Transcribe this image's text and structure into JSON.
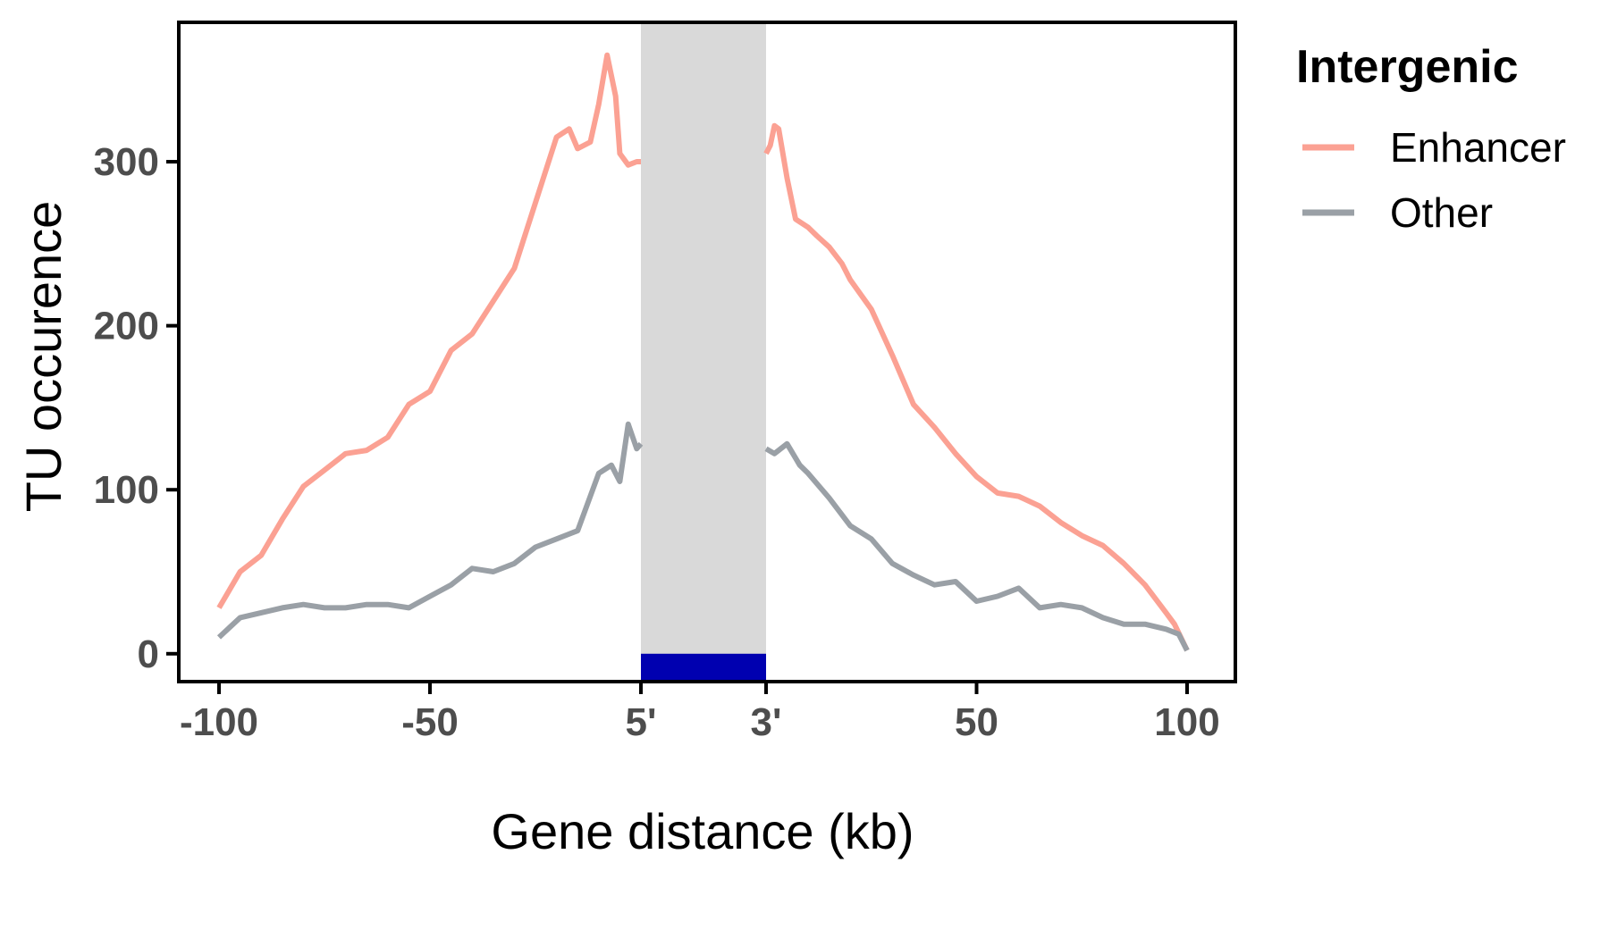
{
  "chart_data": {
    "type": "line",
    "xlabel": "Gene distance (kb)",
    "ylabel": "TU occurence",
    "ylim": [
      -17,
      385
    ],
    "yticks": [
      0,
      100,
      200,
      300
    ],
    "xticks": [
      "-100",
      "-50",
      "5'",
      "3'",
      "50",
      "100"
    ],
    "gene_body_band": {
      "from_label": "5'",
      "to_label": "3'",
      "band_color": "#d9d9d9",
      "gene_bar_color": "#0000b0"
    },
    "grid": false,
    "legend": {
      "title": "Intergenic",
      "position": "right"
    },
    "series": [
      {
        "name": "Enhancer",
        "color": "#fba193",
        "upstream": {
          "x": [
            -100,
            -95,
            -90,
            -85,
            -80,
            -75,
            -70,
            -65,
            -60,
            -55,
            -50,
            -45,
            -40,
            -35,
            -30,
            -25,
            -20,
            -17,
            -15,
            -12,
            -10,
            -8,
            -6,
            -5,
            -3,
            -1,
            0
          ],
          "y": [
            28,
            50,
            60,
            82,
            102,
            112,
            122,
            124,
            132,
            152,
            160,
            185,
            195,
            215,
            235,
            275,
            315,
            320,
            308,
            312,
            335,
            365,
            340,
            305,
            298,
            300,
            300
          ]
        },
        "downstream": {
          "x": [
            0,
            1,
            2,
            3,
            5,
            7,
            10,
            12,
            15,
            18,
            20,
            25,
            30,
            35,
            40,
            45,
            50,
            55,
            60,
            65,
            70,
            75,
            80,
            85,
            90,
            95,
            97,
            100
          ],
          "y": [
            305,
            310,
            322,
            320,
            290,
            265,
            260,
            255,
            248,
            238,
            228,
            210,
            182,
            152,
            138,
            122,
            108,
            98,
            96,
            90,
            80,
            72,
            66,
            55,
            42,
            25,
            18,
            2
          ]
        }
      },
      {
        "name": "Other",
        "color": "#9aa0a6",
        "upstream": {
          "x": [
            -100,
            -95,
            -90,
            -85,
            -80,
            -75,
            -70,
            -65,
            -60,
            -55,
            -50,
            -45,
            -40,
            -35,
            -30,
            -25,
            -20,
            -15,
            -10,
            -7,
            -5,
            -3,
            -1,
            0
          ],
          "y": [
            10,
            22,
            25,
            28,
            30,
            28,
            28,
            30,
            30,
            28,
            35,
            42,
            52,
            50,
            55,
            65,
            70,
            75,
            110,
            115,
            105,
            140,
            125,
            128
          ]
        },
        "downstream": {
          "x": [
            0,
            2,
            5,
            8,
            10,
            15,
            20,
            25,
            30,
            35,
            40,
            45,
            50,
            55,
            60,
            65,
            70,
            75,
            80,
            85,
            90,
            95,
            98,
            100
          ],
          "y": [
            125,
            122,
            128,
            115,
            110,
            95,
            78,
            70,
            55,
            48,
            42,
            44,
            32,
            35,
            40,
            28,
            30,
            28,
            22,
            18,
            18,
            15,
            12,
            2
          ]
        }
      }
    ]
  }
}
